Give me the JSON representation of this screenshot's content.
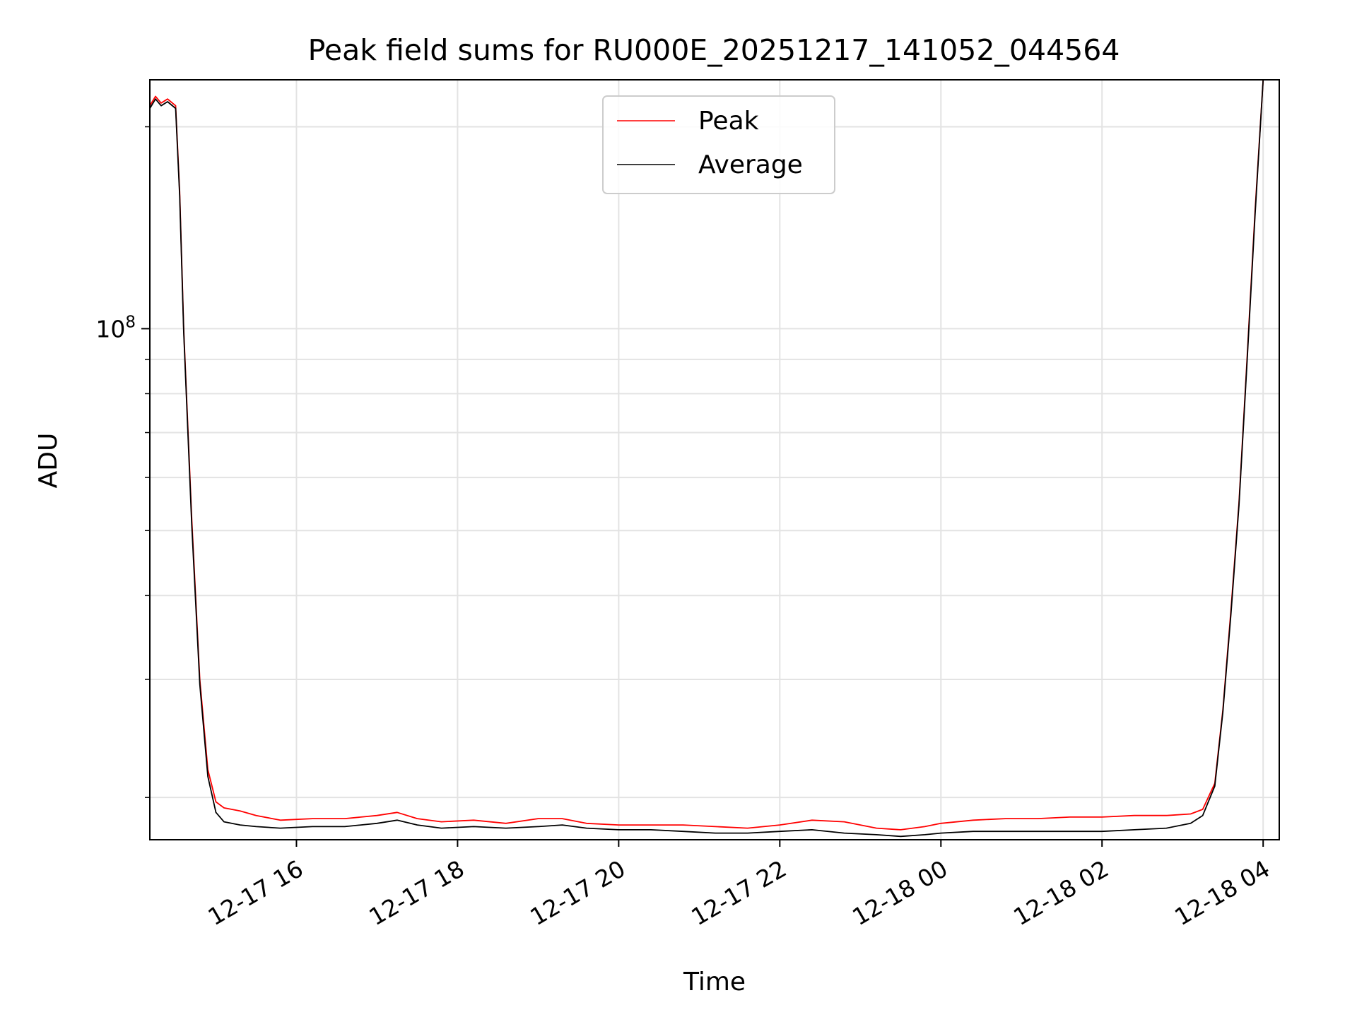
{
  "chart_data": {
    "type": "line",
    "title": "Peak field sums for RU000E_20251217_141052_044564",
    "xlabel": "Time",
    "ylabel": "ADU",
    "yscale": "log",
    "ylim": [
      17300000.0,
      235000000.0
    ],
    "xlim_hours": [
      14.18,
      28.2
    ],
    "grid": true,
    "legend_position": "upper-center",
    "x_ticks": [
      {
        "hour": 16,
        "label": "12-17 16"
      },
      {
        "hour": 18,
        "label": "12-17 18"
      },
      {
        "hour": 20,
        "label": "12-17 20"
      },
      {
        "hour": 22,
        "label": "12-17 22"
      },
      {
        "hour": 24,
        "label": "12-18 00"
      },
      {
        "hour": 26,
        "label": "12-18 02"
      },
      {
        "hour": 28,
        "label": "12-18 04"
      }
    ],
    "y_tick_major": {
      "value": 100000000.0,
      "base": "10",
      "exponent": "8"
    },
    "y_minor_ticks": [
      20000000.0,
      30000000.0,
      40000000.0,
      50000000.0,
      60000000.0,
      70000000.0,
      80000000.0,
      90000000.0,
      200000000.0
    ],
    "series": [
      {
        "name": "Peak",
        "color": "#ff0000",
        "x_hours": [
          14.18,
          14.25,
          14.32,
          14.4,
          14.5,
          14.55,
          14.6,
          14.7,
          14.8,
          14.9,
          15.0,
          15.1,
          15.3,
          15.5,
          15.8,
          16.2,
          16.6,
          17.0,
          17.25,
          17.5,
          17.8,
          18.2,
          18.6,
          19.0,
          19.3,
          19.6,
          20.0,
          20.4,
          20.8,
          21.2,
          21.6,
          22.0,
          22.4,
          22.8,
          23.2,
          23.5,
          23.8,
          24.0,
          24.4,
          24.8,
          25.2,
          25.6,
          26.0,
          26.4,
          26.8,
          27.1,
          27.25,
          27.4,
          27.5,
          27.6,
          27.7,
          27.8,
          27.9,
          28.0
        ],
        "values": [
          215000000.0,
          222000000.0,
          217000000.0,
          220000000.0,
          215000000.0,
          160000000.0,
          100000000.0,
          52000000.0,
          30000000.0,
          22000000.0,
          19700000.0,
          19300000.0,
          19100000.0,
          18800000.0,
          18500000.0,
          18600000.0,
          18600000.0,
          18800000.0,
          19000000.0,
          18600000.0,
          18400000.0,
          18500000.0,
          18300000.0,
          18600000.0,
          18600000.0,
          18300000.0,
          18200000.0,
          18200000.0,
          18200000.0,
          18100000.0,
          18000000.0,
          18200000.0,
          18500000.0,
          18400000.0,
          18000000.0,
          17900000.0,
          18100000.0,
          18300000.0,
          18500000.0,
          18600000.0,
          18600000.0,
          18700000.0,
          18700000.0,
          18800000.0,
          18800000.0,
          18900000.0,
          19200000.0,
          21000000.0,
          27000000.0,
          38000000.0,
          55000000.0,
          90000000.0,
          150000000.0,
          235000000.0
        ]
      },
      {
        "name": "Average",
        "color": "#000000",
        "x_hours": [
          14.18,
          14.25,
          14.32,
          14.4,
          14.5,
          14.55,
          14.6,
          14.7,
          14.8,
          14.9,
          15.0,
          15.1,
          15.3,
          15.5,
          15.8,
          16.2,
          16.6,
          17.0,
          17.25,
          17.5,
          17.8,
          18.2,
          18.6,
          19.0,
          19.3,
          19.6,
          20.0,
          20.4,
          20.8,
          21.2,
          21.6,
          22.0,
          22.4,
          22.8,
          23.2,
          23.5,
          23.8,
          24.0,
          24.4,
          24.8,
          25.2,
          25.6,
          26.0,
          26.4,
          26.8,
          27.1,
          27.25,
          27.4,
          27.5,
          27.6,
          27.7,
          27.8,
          27.9,
          28.0
        ],
        "values": [
          213000000.0,
          220000000.0,
          215000000.0,
          218000000.0,
          213000000.0,
          158000000.0,
          99000000.0,
          51000000.0,
          29500000.0,
          21500000.0,
          19000000.0,
          18400000.0,
          18200000.0,
          18100000.0,
          18000000.0,
          18100000.0,
          18100000.0,
          18300000.0,
          18500000.0,
          18200000.0,
          18000000.0,
          18100000.0,
          18000000.0,
          18100000.0,
          18200000.0,
          18000000.0,
          17900000.0,
          17900000.0,
          17800000.0,
          17700000.0,
          17700000.0,
          17800000.0,
          17900000.0,
          17700000.0,
          17600000.0,
          17500000.0,
          17600000.0,
          17700000.0,
          17800000.0,
          17800000.0,
          17800000.0,
          17800000.0,
          17800000.0,
          17900000.0,
          18000000.0,
          18300000.0,
          18800000.0,
          20800000.0,
          26800000.0,
          37500000.0,
          54500000.0,
          89000000.0,
          148000000.0,
          235000000.0
        ]
      }
    ]
  }
}
